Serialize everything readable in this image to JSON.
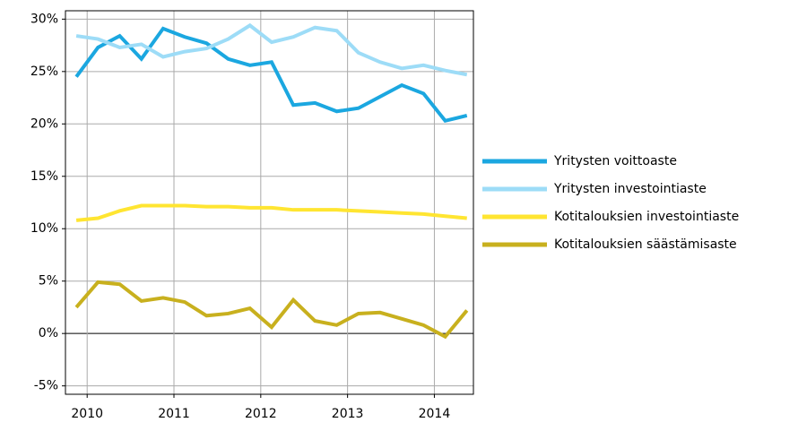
{
  "chart_data": {
    "type": "line",
    "x": [
      2009.875,
      2010.125,
      2010.375,
      2010.625,
      2010.875,
      2011.125,
      2011.375,
      2011.625,
      2011.875,
      2012.125,
      2012.375,
      2012.625,
      2012.875,
      2013.125,
      2013.375,
      2013.625,
      2013.875,
      2014.125,
      2014.375
    ],
    "series": [
      {
        "name": "Yritysten voittoaste",
        "color": "#1ba7e0",
        "values": [
          24.5,
          27.3,
          28.4,
          26.2,
          29.1,
          28.3,
          27.7,
          26.2,
          25.6,
          25.9,
          21.8,
          22.0,
          21.2,
          21.5,
          22.6,
          23.7,
          22.9,
          20.3,
          20.8
        ]
      },
      {
        "name": "Yritysten investointiaste",
        "color": "#9ddcf7",
        "values": [
          28.4,
          28.1,
          27.3,
          27.6,
          26.4,
          26.9,
          27.2,
          28.1,
          29.4,
          27.8,
          28.3,
          29.2,
          28.9,
          26.8,
          25.9,
          25.3,
          25.6,
          25.1,
          24.7
        ]
      },
      {
        "name": "Kotitalouksien investointiaste",
        "color": "#ffe531",
        "values": [
          10.8,
          11.0,
          11.7,
          12.2,
          12.2,
          12.2,
          12.1,
          12.1,
          12.0,
          12.0,
          11.8,
          11.8,
          11.8,
          11.7,
          11.6,
          11.5,
          11.4,
          11.2,
          11.0
        ]
      },
      {
        "name": "Kotitalouksien säästämisaste",
        "color": "#c8b01e",
        "values": [
          2.5,
          4.9,
          4.7,
          3.1,
          3.4,
          3.0,
          1.7,
          1.9,
          2.4,
          0.6,
          3.2,
          1.2,
          0.8,
          1.9,
          2.0,
          1.4,
          0.8,
          -0.3,
          2.2
        ]
      }
    ],
    "xlim": [
      2009.75,
      2014.45
    ],
    "xticks": [
      2010,
      2011,
      2012,
      2013,
      2014
    ],
    "ylim": [
      -5.8,
      30.8
    ],
    "yticks": [
      {
        "value": -5,
        "label": "-5%"
      },
      {
        "value": 0,
        "label": "0%"
      },
      {
        "value": 5,
        "label": "5%"
      },
      {
        "value": 10,
        "label": "10%"
      },
      {
        "value": 15,
        "label": "15%"
      },
      {
        "value": 20,
        "label": "20%"
      },
      {
        "value": 25,
        "label": "25%"
      },
      {
        "value": 30,
        "label": "30%"
      }
    ],
    "grid": true,
    "legend": "right"
  }
}
